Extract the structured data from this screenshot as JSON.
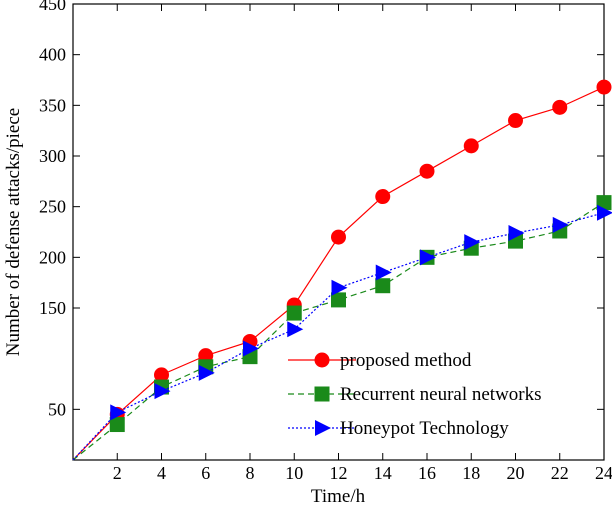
{
  "chart_data": {
    "type": "line",
    "xlabel": "Time/h",
    "ylabel": "Number of defense attacks/piece",
    "xlim": [
      0,
      24
    ],
    "ylim": [
      0,
      450
    ],
    "x_ticks": [
      2,
      4,
      6,
      8,
      10,
      12,
      14,
      16,
      18,
      20,
      22,
      24
    ],
    "y_ticks": [
      50,
      150,
      200,
      250,
      300,
      350,
      400,
      450
    ],
    "grid": false,
    "legend_position": "bottom-right",
    "x": [
      0,
      2,
      4,
      6,
      8,
      10,
      12,
      14,
      16,
      18,
      20,
      22,
      24
    ],
    "series": [
      {
        "name": "proposed method",
        "color": "#ff0000",
        "marker": "circle",
        "line_style": "solid",
        "values": [
          0,
          45,
          84,
          103,
          117,
          153,
          220,
          260,
          285,
          310,
          335,
          348,
          368
        ]
      },
      {
        "name": "Recurrent neural networks",
        "color": "#1a8a1a",
        "marker": "square",
        "line_style": "dashed",
        "values": [
          0,
          35,
          72,
          92,
          102,
          145,
          158,
          172,
          200,
          209,
          216,
          226,
          254
        ]
      },
      {
        "name": "Honeypot Technology",
        "color": "#0000ff",
        "marker": "triangle-right",
        "line_style": "dotted",
        "values": [
          0,
          47,
          68,
          86,
          110,
          129,
          170,
          185,
          200,
          215,
          224,
          232,
          244
        ]
      }
    ]
  }
}
